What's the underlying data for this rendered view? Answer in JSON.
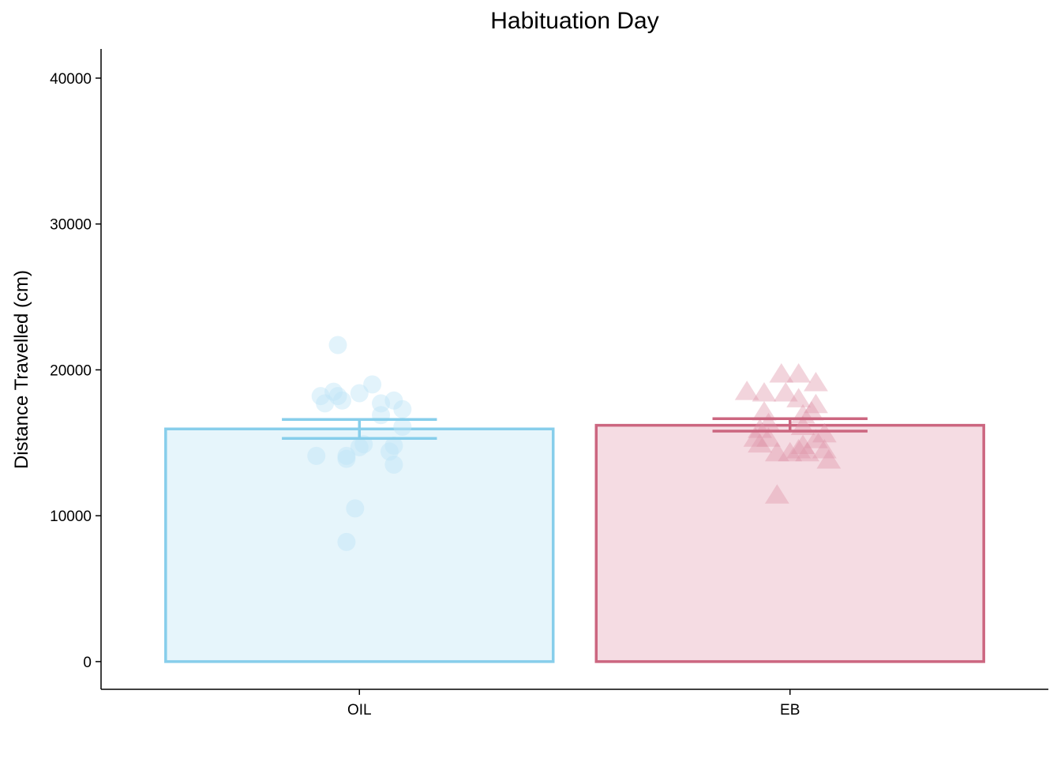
{
  "chart_data": {
    "type": "bar",
    "title": "Habituation Day",
    "xlabel": "",
    "ylabel": "Distance Travelled (cm)",
    "ylim": [
      -1900,
      42000
    ],
    "yticks": [
      0,
      10000,
      20000,
      30000,
      40000
    ],
    "grid": false,
    "legend": "none",
    "categories": [
      "OIL",
      "EB"
    ],
    "values": [
      15950,
      16200
    ],
    "error": [
      {
        "low": 15300,
        "high": 16600
      },
      {
        "low": 15800,
        "high": 16650
      }
    ],
    "colors": {
      "OIL": {
        "stroke": "#87CEEB",
        "fill": "#E6F5FB",
        "point": "#BFE4F7",
        "shape": "circle"
      },
      "EB": {
        "stroke": "#CC6680",
        "fill": "#F5DCE3",
        "point": "#DE93A7",
        "shape": "triangle"
      }
    },
    "points": {
      "OIL": [
        {
          "x": -0.05,
          "y": 21700
        },
        {
          "x": 0.03,
          "y": 19000
        },
        {
          "x": -0.06,
          "y": 18500
        },
        {
          "x": 0.0,
          "y": 18400
        },
        {
          "x": -0.09,
          "y": 18200
        },
        {
          "x": -0.05,
          "y": 18200
        },
        {
          "x": 0.08,
          "y": 17900
        },
        {
          "x": -0.04,
          "y": 17900
        },
        {
          "x": -0.08,
          "y": 17700
        },
        {
          "x": 0.05,
          "y": 17700
        },
        {
          "x": 0.1,
          "y": 17300
        },
        {
          "x": 0.05,
          "y": 16900
        },
        {
          "x": 0.1,
          "y": 16100
        },
        {
          "x": 0.0,
          "y": 14700
        },
        {
          "x": 0.01,
          "y": 14900
        },
        {
          "x": 0.08,
          "y": 14800
        },
        {
          "x": 0.07,
          "y": 14400
        },
        {
          "x": -0.1,
          "y": 14100
        },
        {
          "x": -0.03,
          "y": 14100
        },
        {
          "x": -0.03,
          "y": 13900
        },
        {
          "x": 0.08,
          "y": 13500
        },
        {
          "x": -0.01,
          "y": 10500
        },
        {
          "x": -0.03,
          "y": 8200
        }
      ],
      "EB": [
        {
          "x": -0.02,
          "y": 19700
        },
        {
          "x": 0.02,
          "y": 19700
        },
        {
          "x": 0.06,
          "y": 19100
        },
        {
          "x": -0.1,
          "y": 18500
        },
        {
          "x": -0.06,
          "y": 18400
        },
        {
          "x": -0.01,
          "y": 18400
        },
        {
          "x": 0.02,
          "y": 18000
        },
        {
          "x": 0.06,
          "y": 17600
        },
        {
          "x": 0.05,
          "y": 17100
        },
        {
          "x": -0.06,
          "y": 17100
        },
        {
          "x": 0.03,
          "y": 16900
        },
        {
          "x": -0.05,
          "y": 16300
        },
        {
          "x": 0.03,
          "y": 16100
        },
        {
          "x": -0.07,
          "y": 15900
        },
        {
          "x": 0.08,
          "y": 15600
        },
        {
          "x": -0.05,
          "y": 15300
        },
        {
          "x": -0.08,
          "y": 15300
        },
        {
          "x": 0.06,
          "y": 15200
        },
        {
          "x": -0.07,
          "y": 14900
        },
        {
          "x": 0.03,
          "y": 14800
        },
        {
          "x": 0.08,
          "y": 14500
        },
        {
          "x": 0.02,
          "y": 14500
        },
        {
          "x": 0.0,
          "y": 14300
        },
        {
          "x": -0.03,
          "y": 14300
        },
        {
          "x": 0.04,
          "y": 14300
        },
        {
          "x": 0.09,
          "y": 13800
        },
        {
          "x": -0.03,
          "y": 11400
        }
      ]
    }
  }
}
